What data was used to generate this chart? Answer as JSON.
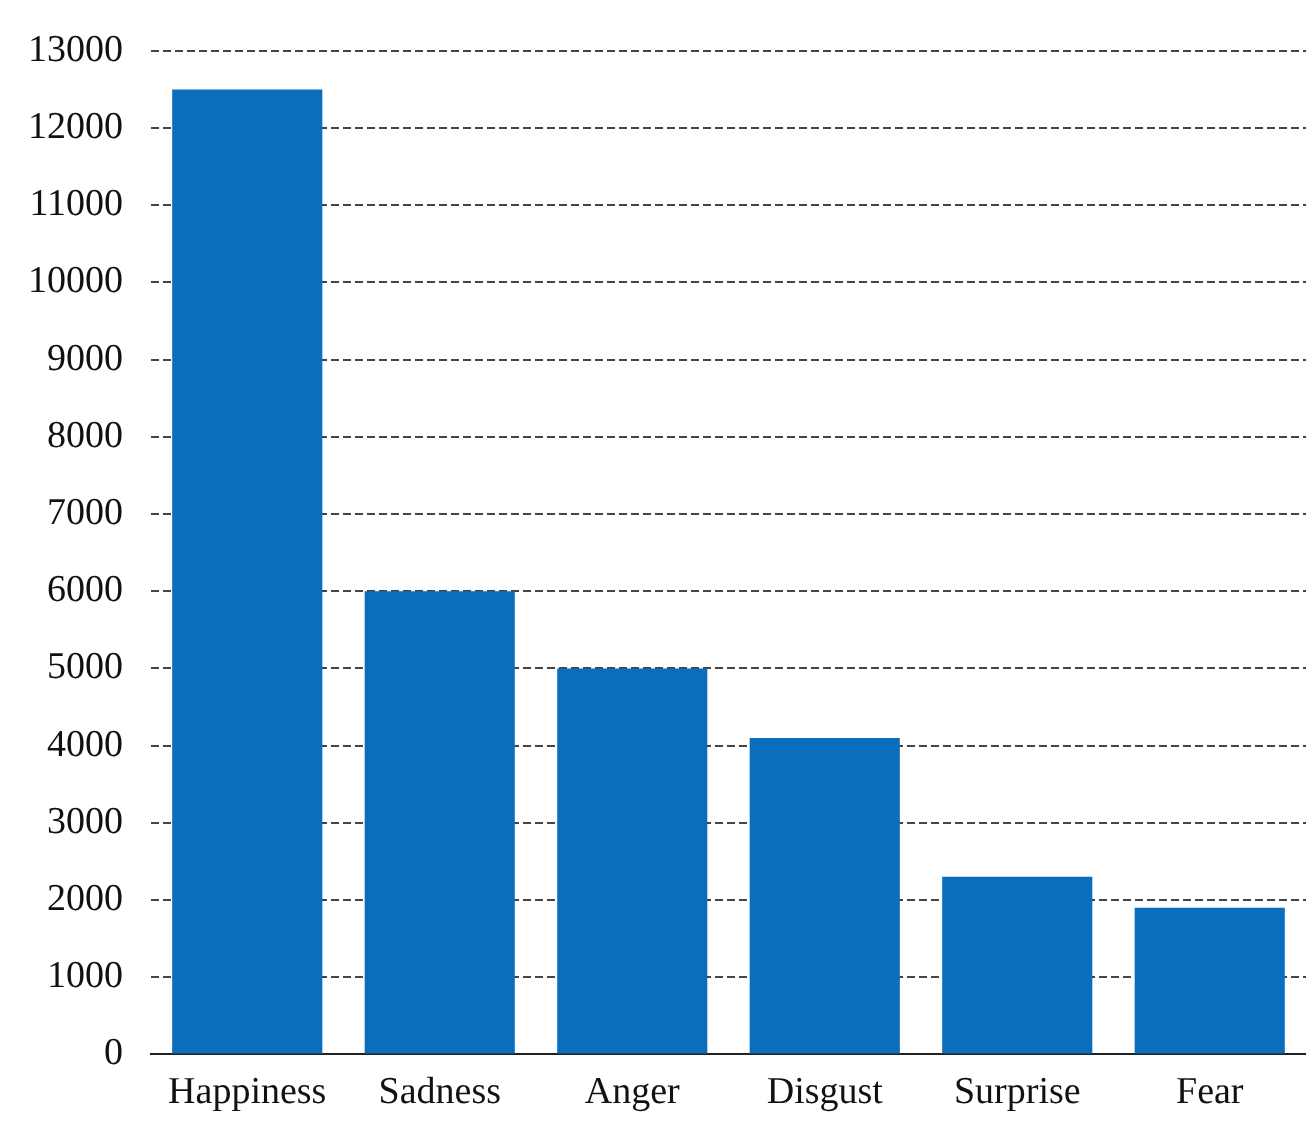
{
  "chart_data": {
    "type": "bar",
    "categories": [
      "Happiness",
      "Sadness",
      "Anger",
      "Disgust",
      "Surprise",
      "Fear"
    ],
    "values": [
      12500,
      6000,
      5000,
      4100,
      2300,
      1900
    ],
    "color": "#0a6ebd",
    "ylim": [
      0,
      13000
    ],
    "yticks": [
      0,
      1000,
      2000,
      3000,
      4000,
      5000,
      6000,
      7000,
      8000,
      9000,
      10000,
      11000,
      12000,
      13000
    ],
    "grid": "y",
    "legend": false
  }
}
